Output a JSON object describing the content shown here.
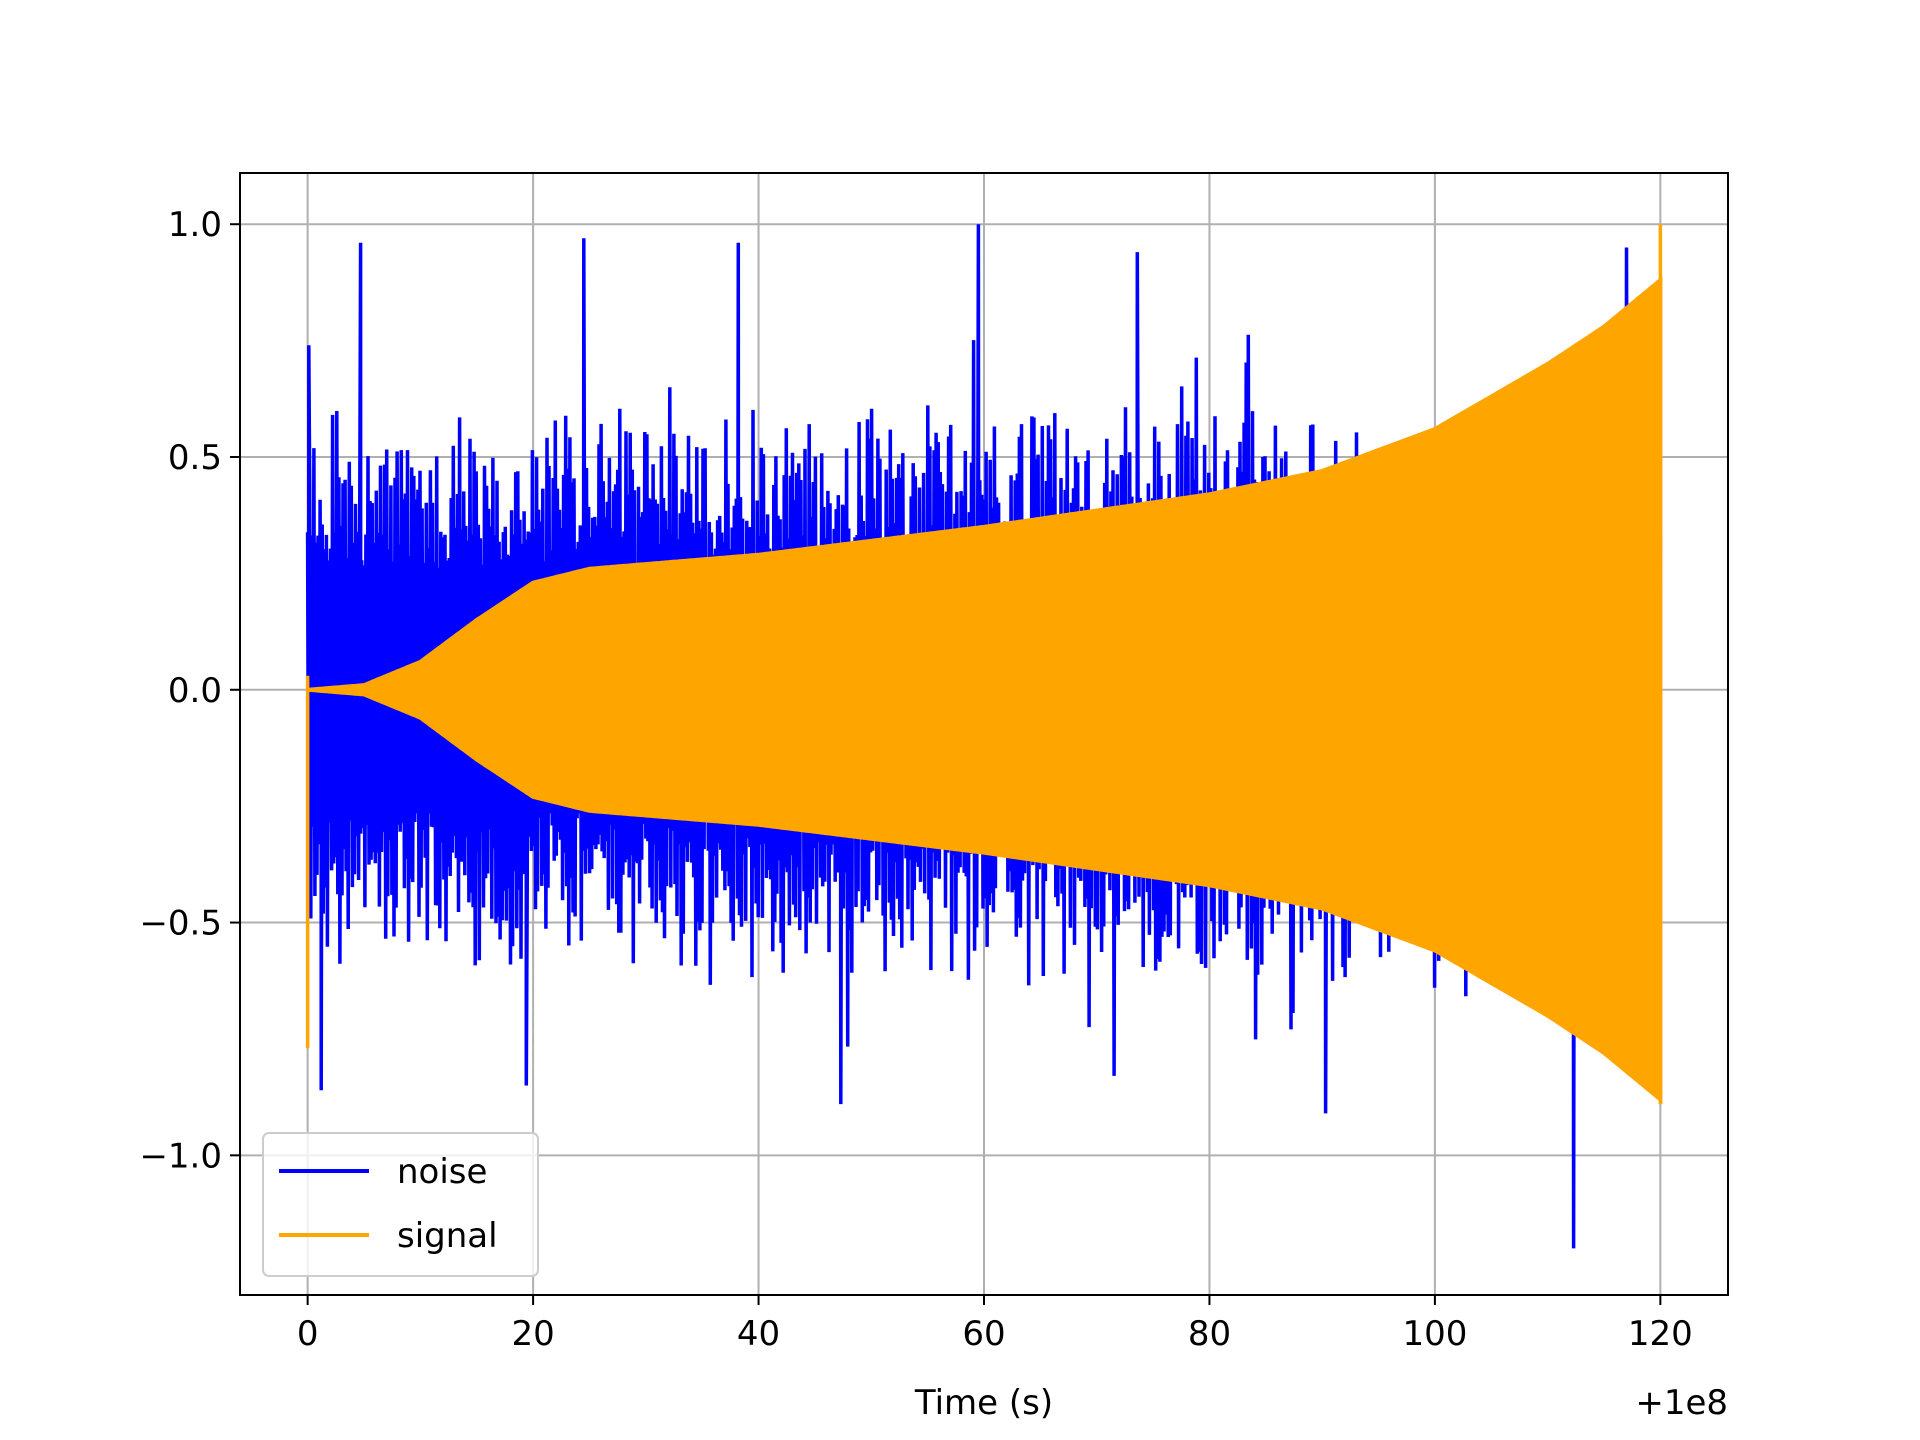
{
  "chart_data": {
    "type": "line",
    "title": "",
    "xlabel": "Time (s)",
    "ylabel": "",
    "x_offset_label": "+1e8",
    "xlim": [
      -6,
      126
    ],
    "ylim": [
      -1.3,
      1.11
    ],
    "x_ticks": [
      0,
      20,
      40,
      60,
      80,
      100,
      120
    ],
    "x_tick_labels": [
      "0",
      "20",
      "40",
      "60",
      "80",
      "100",
      "120"
    ],
    "y_ticks": [
      -1.0,
      -0.5,
      0.0,
      0.5,
      1.0
    ],
    "y_tick_labels": [
      "−1.0",
      "−0.5",
      "0.0",
      "0.5",
      "1.0"
    ],
    "grid": true,
    "legend_position": "lower-left",
    "series": [
      {
        "name": "noise",
        "color": "#0000ff",
        "x_range": [
          0,
          120
        ],
        "upper_envelope": [
          [
            0,
            0.6
          ],
          [
            20,
            0.62
          ],
          [
            60,
            0.65
          ],
          [
            100,
            0.62
          ],
          [
            120,
            0.62
          ]
        ],
        "lower_envelope": [
          [
            0,
            -0.62
          ],
          [
            20,
            -0.64
          ],
          [
            60,
            -0.66
          ],
          [
            100,
            -0.66
          ],
          [
            120,
            -0.66
          ]
        ],
        "peaks": [
          [
            0.1,
            0.74
          ],
          [
            4.7,
            0.96
          ],
          [
            24.5,
            0.97
          ],
          [
            38.2,
            0.96
          ],
          [
            59.5,
            1.0
          ],
          [
            73.6,
            0.94
          ],
          [
            117,
            0.95
          ]
        ],
        "troughs": [
          [
            1.2,
            -0.86
          ],
          [
            19.4,
            -0.85
          ],
          [
            47.3,
            -0.89
          ],
          [
            90.3,
            -0.91
          ],
          [
            112.3,
            -1.2
          ]
        ]
      },
      {
        "name": "signal",
        "color": "#ffa500",
        "x_range": [
          0,
          120
        ],
        "envelope": [
          [
            0,
            0.0
          ],
          [
            5,
            0.01
          ],
          [
            10,
            0.06
          ],
          [
            15,
            0.15
          ],
          [
            20,
            0.23
          ],
          [
            25,
            0.26
          ],
          [
            40,
            0.29
          ],
          [
            60,
            0.35
          ],
          [
            80,
            0.42
          ],
          [
            90,
            0.47
          ],
          [
            100,
            0.56
          ],
          [
            110,
            0.7
          ],
          [
            115,
            0.78
          ],
          [
            120,
            0.88
          ]
        ],
        "start_spike": [
          0,
          -0.77
        ],
        "end_peak": [
          120,
          1.0
        ],
        "end_trough": [
          120,
          -0.89
        ]
      }
    ]
  }
}
